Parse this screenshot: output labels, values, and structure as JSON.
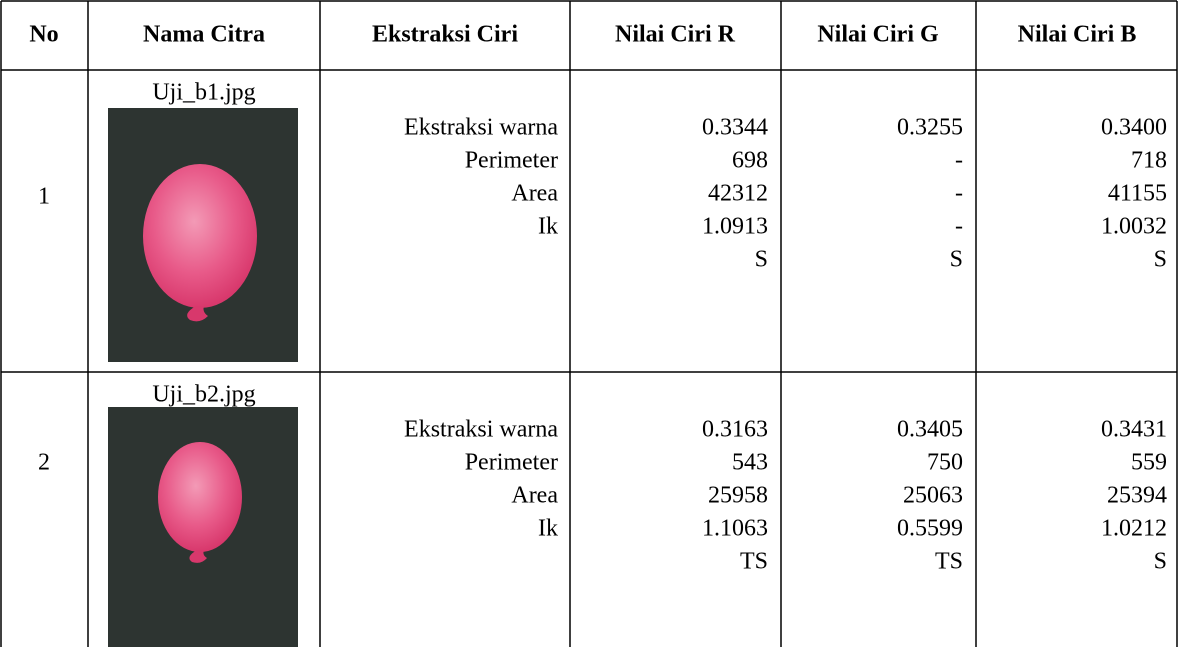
{
  "table": {
    "header": [
      "No",
      "Nama Citra",
      "Ekstraksi Ciri",
      "Nilai Ciri R",
      "Nilai Ciri G",
      "Nilai Ciri B"
    ],
    "rows": [
      {
        "no": "1",
        "image_name": "Uji_b1.jpg",
        "features": [
          "Ekstraksi warna",
          "Perimeter",
          "Area",
          "Ik"
        ],
        "r": [
          "0.3344",
          "698",
          "42312",
          "1.0913",
          "S"
        ],
        "g": [
          "0.3255",
          "-",
          "-",
          "-",
          "S"
        ],
        "b": [
          "0.3400",
          "718",
          "41155",
          "1.0032",
          "S"
        ]
      },
      {
        "no": "2",
        "image_name": "Uji_b2.jpg",
        "features": [
          "Ekstraksi warna",
          "Perimeter",
          "Area",
          "Ik"
        ],
        "r": [
          "0.3163",
          "543",
          "25958",
          "1.1063",
          "TS"
        ],
        "g": [
          "0.3405",
          "750",
          "25063",
          "0.5599",
          "TS"
        ],
        "b": [
          "0.3431",
          "559",
          "25394",
          "1.0212",
          "S"
        ]
      }
    ]
  }
}
